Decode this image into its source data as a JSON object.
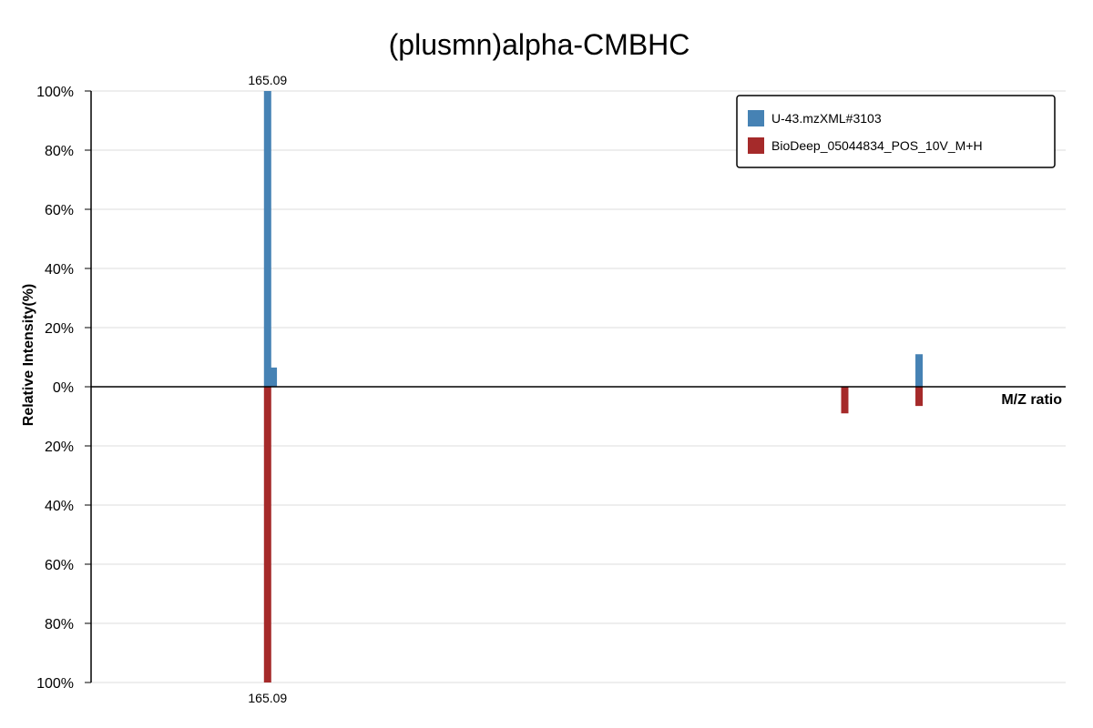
{
  "chart_data": {
    "type": "bar",
    "title": "(plusmn)alpha-CMBHC",
    "xlabel": "M/Z ratio",
    "ylabel": "Relative Intensity(%)",
    "ylim": [
      -100,
      100
    ],
    "y_ticks": [
      {
        "value": 100,
        "label": "100%"
      },
      {
        "value": 80,
        "label": "80%"
      },
      {
        "value": 60,
        "label": "60%"
      },
      {
        "value": 40,
        "label": "40%"
      },
      {
        "value": 20,
        "label": "20%"
      },
      {
        "value": 0,
        "label": "0%"
      },
      {
        "value": -20,
        "label": "20%"
      },
      {
        "value": -40,
        "label": "40%"
      },
      {
        "value": -60,
        "label": "60%"
      },
      {
        "value": -80,
        "label": "80%"
      },
      {
        "value": -100,
        "label": "100%"
      }
    ],
    "legend_position": "top-right",
    "series": [
      {
        "name": "U-43.mzXML#3103",
        "color": "#4682b4",
        "direction": "up",
        "peaks": [
          {
            "mz": 165.09,
            "intensity": 100,
            "label": "165.09"
          },
          {
            "mz": 166.09,
            "intensity": 6.5,
            "label": ""
          },
          {
            "mz": 279.1,
            "intensity": 11,
            "label": ""
          }
        ]
      },
      {
        "name": "BioDeep_05044834_POS_10V_M+H",
        "color": "#a52a2a",
        "direction": "down",
        "peaks": [
          {
            "mz": 165.09,
            "intensity": 100,
            "label": "165.09"
          },
          {
            "mz": 266.1,
            "intensity": 9,
            "label": ""
          },
          {
            "mz": 279.1,
            "intensity": 6.5,
            "label": ""
          }
        ]
      }
    ]
  }
}
